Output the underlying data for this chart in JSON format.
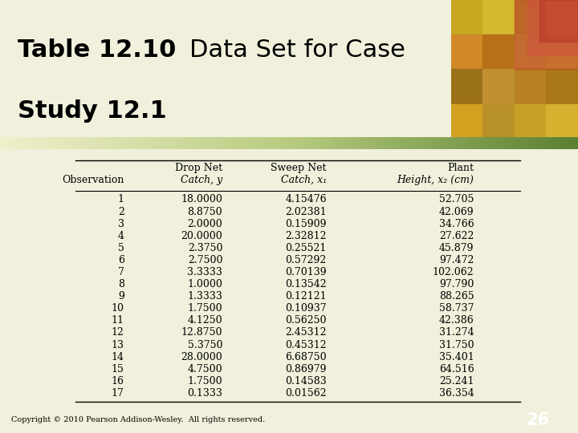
{
  "title_bold": "Table 12.10",
  "title_normal": "Data Set for Case",
  "title_line2": "Study 12.1",
  "header_row1": [
    "",
    "Drop Net",
    "Sweep Net",
    "Plant"
  ],
  "header_row2": [
    "Observation",
    "Catch, y",
    "Catch, x₁",
    "Height, x₂ (cm)"
  ],
  "observations": [
    "1",
    "2",
    "3",
    "4",
    "5",
    "6",
    "7",
    "8",
    "9",
    "10",
    "11",
    "12",
    "13",
    "14",
    "15",
    "16",
    "17"
  ],
  "drop_net_catch": [
    "18.0000",
    "8.8750",
    "2.0000",
    "20.0000",
    "2.3750",
    "2.7500",
    "3.3333",
    "1.0000",
    "1.3333",
    "1.7500",
    "4.1250",
    "12.8750",
    "5.3750",
    "28.0000",
    "4.7500",
    "1.7500",
    "0.1333"
  ],
  "sweep_net_catch": [
    "4.15476",
    "2.02381",
    "0.15909",
    "2.32812",
    "0.25521",
    "0.57292",
    "0.70139",
    "0.13542",
    "0.12121",
    "0.10937",
    "0.56250",
    "2.45312",
    "0.45312",
    "6.68750",
    "0.86979",
    "0.14583",
    "0.01562"
  ],
  "plant_height": [
    "52.705",
    "42.069",
    "34.766",
    "27.622",
    "45.879",
    "97.472",
    "102.062",
    "97.790",
    "88.265",
    "58.737",
    "42.386",
    "31.274",
    "31.750",
    "35.401",
    "64.516",
    "25.241",
    "36.354"
  ],
  "bg_color": "#f0f0dc",
  "copyright": "Copyright © 2010 Pearson Addison-Wesley.  All rights reserved.",
  "page_num": "26",
  "page_bg": "#7a9e7e",
  "grad_colors": [
    "#f5f5d8",
    "#c8d898",
    "#6e9040"
  ],
  "title_fontsize": 22,
  "table_fontsize": 9
}
